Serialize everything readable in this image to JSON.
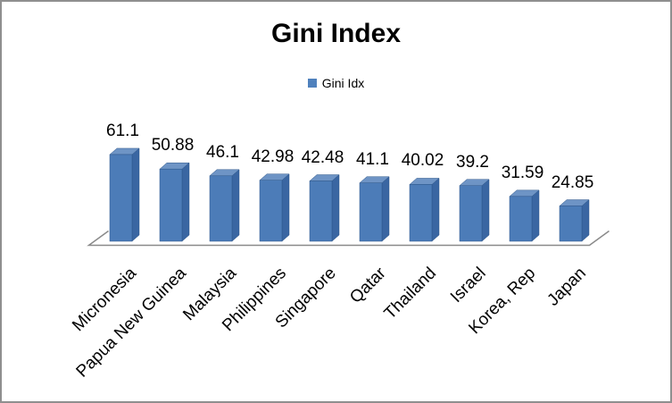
{
  "frame": {
    "border_color": "#8f8f8f",
    "background": "#ffffff"
  },
  "chart_data": {
    "type": "bar",
    "subtype": "3d-column",
    "title": "Gini Index",
    "legend": {
      "label": "Gini Idx",
      "marker_color": "#4f81bd",
      "position": "top-center"
    },
    "categories": [
      "Micronesia",
      "Papua New Guinea",
      "Malaysia",
      "Philippines",
      "Singapore",
      "Qatar",
      "Thailand",
      "Israel",
      "Korea, Rep",
      "Japan"
    ],
    "series": [
      {
        "name": "Gini Idx",
        "values": [
          61.1,
          50.88,
          46.1,
          42.98,
          42.48,
          41.1,
          40.02,
          39.2,
          31.59,
          24.85
        ]
      }
    ],
    "data_labels": [
      "61.1",
      "50.88",
      "46.1",
      "42.98",
      "42.48",
      "41.1",
      "40.02",
      "39.2",
      "31.59",
      "24.85"
    ],
    "xlabel": "",
    "ylabel": "",
    "ylim": [
      0,
      65
    ],
    "grid": false,
    "y_axis_visible": false,
    "category_label_rotation_deg": 45,
    "colors": {
      "bar_front": "#4c7cb8",
      "bar_top": "#6e94c5",
      "bar_side": "#3a66a2",
      "bar_outline": "#2d5689",
      "floor_line": "#8a8a8a",
      "text": "#000000"
    }
  }
}
